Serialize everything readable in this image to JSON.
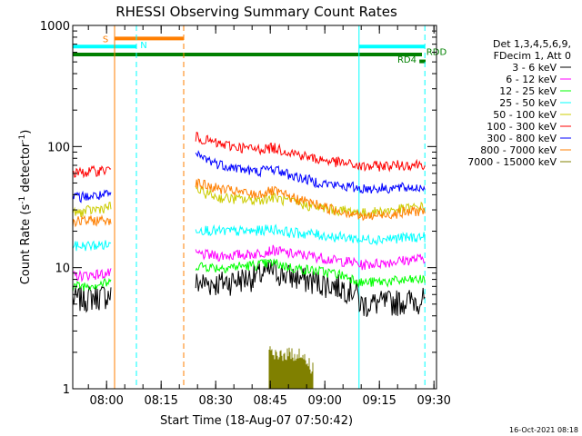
{
  "chart_data": {
    "type": "line",
    "title": "RHESSI Observing Summary Count Rates",
    "xlabel": "Start Time (18-Aug-07 07:50:42)",
    "ylabel_parts": [
      "Count Rate (s",
      "-1",
      " detector",
      "-1",
      ")"
    ],
    "yscale": "log",
    "ylim": [
      1,
      1000
    ],
    "xlim_minutes_after_start": [
      0,
      100
    ],
    "y_ticks": [
      "1",
      "10",
      "100",
      "1000"
    ],
    "x_ticks": [
      {
        "label": "08:00",
        "minute": 9.3
      },
      {
        "label": "08:15",
        "minute": 24.3
      },
      {
        "label": "08:30",
        "minute": 39.3
      },
      {
        "label": "08:45",
        "minute": 54.3
      },
      {
        "label": "09:00",
        "minute": 69.3
      },
      {
        "label": "09:15",
        "minute": 84.3
      },
      {
        "label": "09:30",
        "minute": 99.3
      }
    ],
    "legend_header": [
      "Det 1,3,4,5,6,9,",
      "FDecim 1, Att 0"
    ],
    "legend_placement": "right",
    "timestamp": "16-Oct-2021 08:18",
    "flags": [
      {
        "label": "S",
        "color": "#ff7f00",
        "y": 780,
        "start": 11.5,
        "end": 30.5
      },
      {
        "label": "N",
        "color": "#00ffff",
        "y": 670,
        "start": 0,
        "end": 17.5
      },
      {
        "label": "N",
        "color": "#00ffff",
        "y": 670,
        "start": 78.7,
        "end": 96.8
      },
      {
        "label": "RD4",
        "color": "#008000",
        "y": 575,
        "start": 0,
        "end": 96.0
      },
      {
        "label": "RDD",
        "color": "#008000",
        "y": 505,
        "start": 95.3,
        "end": 97.0
      }
    ],
    "vertical_markers": [
      {
        "minute": 11.5,
        "color": "#ff7f00",
        "style": "solid"
      },
      {
        "minute": 17.5,
        "color": "#00ffff",
        "style": "dashed"
      },
      {
        "minute": 30.5,
        "color": "#ff7f00",
        "style": "dashed"
      },
      {
        "minute": 78.7,
        "color": "#00ffff",
        "style": "solid"
      },
      {
        "minute": 96.8,
        "color": "#00ffff",
        "style": "dashed"
      }
    ],
    "segments": [
      {
        "start": 0,
        "end": 10.5
      },
      {
        "start": 33.8,
        "end": 96.8
      }
    ],
    "series": [
      {
        "name": "3 - 6 keV",
        "color": "#000000",
        "x": [
          0,
          10.5,
          34,
          40,
          50,
          55,
          60,
          66,
          72,
          78,
          79,
          96.8
        ],
        "values": [
          5.5,
          6,
          7.5,
          7.5,
          8.5,
          9.5,
          8.5,
          7.8,
          7.2,
          6.5,
          5,
          5.5
        ]
      },
      {
        "name": "6 - 12 keV",
        "color": "#ff00ff",
        "x": [
          0,
          10.5,
          34,
          40,
          50,
          55,
          60,
          66,
          72,
          78,
          79,
          96.8
        ],
        "values": [
          8.5,
          9,
          13,
          12.5,
          13,
          14,
          13,
          12.5,
          11.5,
          11,
          10.5,
          12
        ]
      },
      {
        "name": "12 - 25 keV",
        "color": "#00ff00",
        "x": [
          0,
          10.5,
          34,
          40,
          50,
          55,
          60,
          66,
          72,
          78,
          79,
          96.8
        ],
        "values": [
          7,
          7.5,
          10.5,
          10,
          10.5,
          11,
          10,
          9.5,
          9,
          8,
          7.5,
          8
        ]
      },
      {
        "name": "25 - 50 keV",
        "color": "#00ffff",
        "x": [
          0,
          10.5,
          34,
          40,
          50,
          55,
          60,
          66,
          72,
          78,
          79,
          96.8
        ],
        "values": [
          15,
          15.5,
          21,
          20,
          20,
          21,
          19.5,
          19,
          18,
          17.5,
          17,
          18
        ]
      },
      {
        "name": "50 - 100 keV",
        "color": "#cccc00",
        "x": [
          0,
          10.5,
          34,
          40,
          50,
          55,
          60,
          66,
          72,
          78,
          79,
          96.8
        ],
        "values": [
          28,
          32,
          44,
          38,
          36,
          38,
          35,
          32,
          30,
          29,
          28,
          32
        ]
      },
      {
        "name": "100 - 300 keV",
        "color": "#ff0000",
        "x": [
          0,
          10.5,
          34,
          40,
          50,
          55,
          60,
          66,
          72,
          78,
          79,
          96.8
        ],
        "values": [
          60,
          65,
          120,
          105,
          95,
          98,
          90,
          80,
          75,
          70,
          68,
          72
        ]
      },
      {
        "name": "300 - 800 keV",
        "color": "#0000ff",
        "x": [
          0,
          10.5,
          34,
          40,
          50,
          55,
          60,
          66,
          72,
          78,
          79,
          96.8
        ],
        "values": [
          38,
          40,
          85,
          72,
          62,
          66,
          58,
          52,
          48,
          46,
          45,
          46
        ]
      },
      {
        "name": "800 - 7000 keV",
        "color": "#ff7f00",
        "x": [
          0,
          10.5,
          34,
          40,
          50,
          55,
          60,
          66,
          72,
          78,
          79,
          96.8
        ],
        "values": [
          24,
          25,
          50,
          45,
          40,
          43,
          38,
          34,
          30,
          28,
          26,
          30
        ]
      },
      {
        "name": "7000 - 15000 keV",
        "color": "#808000",
        "x": [
          54,
          56,
          58,
          60,
          62,
          64,
          66
        ],
        "values": [
          2,
          1.8,
          2,
          1.9,
          2,
          1.7,
          1.5
        ]
      }
    ]
  }
}
